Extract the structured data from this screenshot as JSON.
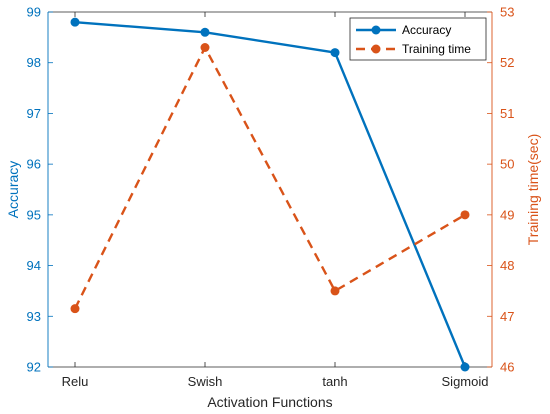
{
  "chart_data": {
    "type": "line",
    "title": "",
    "categories": [
      "Relu",
      "Swish",
      "tanh",
      "Sigmoid"
    ],
    "xlabel": "Activation Functions",
    "y_left": {
      "label": "Accuracy",
      "lim": [
        92,
        99
      ],
      "ticks": [
        92,
        93,
        94,
        95,
        96,
        97,
        98,
        99
      ],
      "color": "#0072BD"
    },
    "y_right": {
      "label": "Training time(sec)",
      "lim": [
        46,
        53
      ],
      "ticks": [
        46,
        47,
        48,
        49,
        50,
        51,
        52,
        53
      ],
      "color": "#D95319"
    },
    "series": [
      {
        "name": "Accuracy",
        "axis": "left",
        "values": [
          98.8,
          98.6,
          98.2,
          92.0
        ],
        "color": "#0072BD",
        "line_style": "solid",
        "marker": "circle"
      },
      {
        "name": "Training time",
        "axis": "right",
        "values": [
          47.15,
          52.3,
          47.5,
          49.0
        ],
        "color": "#D95319",
        "line_style": "dashed",
        "marker": "circle"
      }
    ],
    "legend": {
      "placement": "top-right",
      "entries": [
        "Accuracy",
        "Training time"
      ]
    },
    "grid": false
  }
}
